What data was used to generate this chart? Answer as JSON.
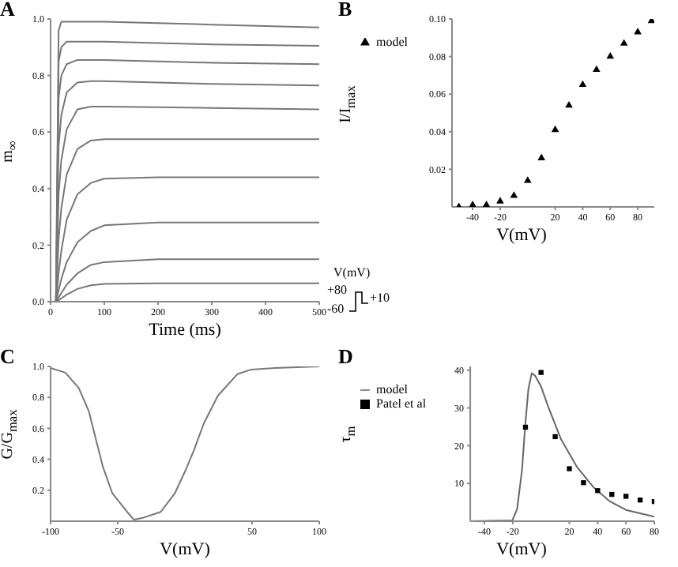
{
  "chart_data": [
    {
      "type": "line",
      "title": "A",
      "xlabel": "Time (ms)",
      "ylabel": "m$_{∞}$",
      "marker": "none",
      "legend": false,
      "x": [
        0,
        10,
        15,
        20,
        30,
        50,
        75,
        100,
        200,
        300,
        500
      ],
      "series": [
        {
          "color": "#777777",
          "values": [
            0,
            0,
            0.96,
            0.99,
            0.99,
            0.99,
            0.99,
            0.99,
            0.985,
            0.98,
            0.97
          ]
        },
        {
          "color": "#777777",
          "values": [
            0,
            0,
            0.85,
            0.9,
            0.92,
            0.92,
            0.92,
            0.92,
            0.915,
            0.91,
            0.905
          ]
        },
        {
          "color": "#777777",
          "values": [
            0,
            0,
            0.72,
            0.8,
            0.84,
            0.855,
            0.855,
            0.855,
            0.85,
            0.845,
            0.84
          ]
        },
        {
          "color": "#777777",
          "values": [
            0,
            0,
            0.55,
            0.66,
            0.74,
            0.775,
            0.78,
            0.78,
            0.775,
            0.77,
            0.765
          ]
        },
        {
          "color": "#777777",
          "values": [
            0,
            0,
            0.38,
            0.5,
            0.61,
            0.68,
            0.69,
            0.69,
            0.688,
            0.685,
            0.68
          ]
        },
        {
          "color": "#777777",
          "values": [
            0,
            0,
            0.22,
            0.33,
            0.45,
            0.54,
            0.57,
            0.575,
            0.575,
            0.575,
            0.575
          ]
        },
        {
          "color": "#777777",
          "values": [
            0,
            0,
            0.1,
            0.18,
            0.29,
            0.38,
            0.42,
            0.435,
            0.44,
            0.44,
            0.44
          ]
        },
        {
          "color": "#777777",
          "values": [
            0,
            0,
            0.04,
            0.08,
            0.14,
            0.21,
            0.25,
            0.27,
            0.28,
            0.28,
            0.28
          ]
        },
        {
          "color": "#777777",
          "values": [
            0,
            0,
            0.015,
            0.03,
            0.06,
            0.1,
            0.13,
            0.14,
            0.15,
            0.15,
            0.15
          ]
        },
        {
          "color": "#777777",
          "values": [
            0,
            0,
            0.005,
            0.012,
            0.025,
            0.045,
            0.058,
            0.063,
            0.065,
            0.065,
            0.065
          ]
        }
      ],
      "xlim": [
        0,
        500
      ],
      "xticks": [
        0,
        100,
        200,
        300,
        400,
        500
      ],
      "ylim": [
        0,
        1
      ],
      "yticks": [
        {
          "value": 0,
          "label": "0.0"
        },
        0.2,
        0.4,
        0.6,
        0.8,
        {
          "value": 1,
          "label": "1.0"
        }
      ],
      "annotations": [
        "V(mV)",
        "+80",
        "-60",
        "+10"
      ]
    },
    {
      "type": "scatter",
      "title": "B",
      "xlabel": "V(mV)",
      "ylabel": "I/I$_{max}$",
      "marker": "triangle",
      "legend": "top left",
      "x": [
        -50,
        -40,
        -30,
        -20,
        -10,
        0,
        10,
        20,
        30,
        40,
        50,
        60,
        70,
        80,
        90
      ],
      "series": [
        {
          "name": "model",
          "color": "#000000",
          "values": [
            0,
            0.001,
            0.001,
            0.003,
            0.006,
            0.014,
            0.026,
            0.041,
            0.054,
            0.065,
            0.073,
            0.08,
            0.087,
            0.093,
            0.099
          ]
        }
      ],
      "xlim": [
        -55,
        92
      ],
      "xticks": [
        -40,
        -20,
        20,
        40,
        60,
        80
      ],
      "ylim": [
        0,
        0.1
      ],
      "yticks": [
        0.02,
        0.04,
        0.06,
        0.08,
        {
          "value": 0.1,
          "label": "0.10"
        }
      ]
    },
    {
      "type": "line",
      "title": "C",
      "xlabel": "V(mV)",
      "ylabel": "G/G$_{max}$",
      "marker": "none",
      "legend": false,
      "x": [
        -100,
        -89,
        -79,
        -71.5,
        -66,
        -61,
        -54,
        -43,
        -38,
        -32,
        -18,
        -7.5,
        0,
        6.8,
        14,
        24.5,
        39,
        49.5,
        67,
        100
      ],
      "series": [
        {
          "color": "#777777",
          "values": [
            0.99,
            0.96,
            0.86,
            0.71,
            0.52,
            0.35,
            0.18,
            0.06,
            0.01,
            0.02,
            0.06,
            0.18,
            0.32,
            0.46,
            0.63,
            0.81,
            0.95,
            0.98,
            0.99,
            1.0
          ]
        }
      ],
      "xlim": [
        -100,
        100
      ],
      "xticks": [
        -100,
        -50,
        50,
        100
      ],
      "ylim": [
        0,
        1
      ],
      "yticks": [
        0.2,
        0.4,
        0.6,
        0.8,
        {
          "value": 1,
          "label": "1.0"
        }
      ]
    },
    {
      "type": "line",
      "title": "D",
      "xlabel": "V(mV)",
      "ylabel": "τ$_{m}$",
      "legend": "top left",
      "series": [
        {
          "name": "model",
          "marker": "none",
          "color": "#666666",
          "x": [
            -50,
            -20.3,
            -16.9,
            -13.4,
            -11.2,
            -8.9,
            -6.6,
            -4.3,
            0,
            4.9,
            14,
            25.5,
            37,
            48.4,
            59.9,
            80
          ],
          "values": [
            0,
            0.2,
            3.2,
            13.7,
            25.3,
            35.1,
            39.2,
            38.6,
            35.7,
            30.5,
            21.8,
            14.3,
            9,
            5.3,
            3,
            1.2
          ]
        },
        {
          "name": "Patel et al",
          "type": "scatter",
          "marker": "square",
          "color": "#000000",
          "x": [
            -11,
            0,
            10,
            20,
            30,
            40,
            50,
            60,
            70,
            80
          ],
          "values": [
            24.9,
            39.4,
            22.4,
            13.9,
            10.2,
            8.1,
            7.1,
            6.6,
            5.6,
            5.2
          ]
        }
      ],
      "xlim": [
        -50,
        80
      ],
      "xticks": [
        -40,
        -20,
        20,
        40,
        60,
        80
      ],
      "ylim": [
        0,
        41
      ],
      "yticks": [
        10,
        20,
        30,
        40
      ]
    }
  ]
}
